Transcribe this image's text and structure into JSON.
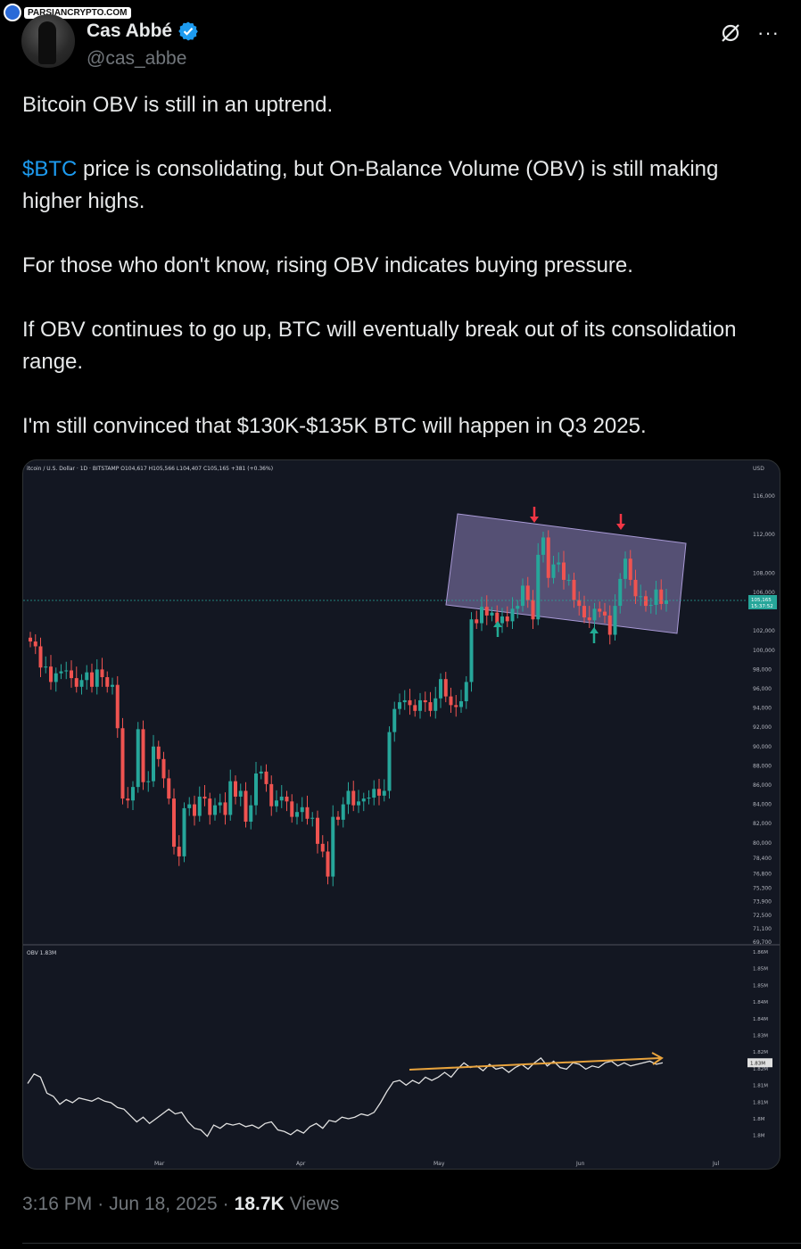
{
  "watermark": {
    "text": "PARSIANCRYPTO.COM"
  },
  "author": {
    "name": "Cas Abbé",
    "handle": "@cas_abbe",
    "verified": true,
    "verified_color": "#1d9bf0"
  },
  "header_icons": {
    "grok": "grok-icon",
    "more": "···"
  },
  "tweet": {
    "line1": "Bitcoin OBV is still in an uptrend.",
    "cashtag": "$BTC",
    "line2_rest": " price is consolidating, but On-Balance Volume (OBV) is still making higher highs.",
    "line3": "For those who don't know, rising OBV indicates buying pressure.",
    "line4": "If OBV continues to go up, BTC will eventually break out of its consolidation range.",
    "line5": "I'm still convinced that $130K-$135K BTC will happen in Q3 2025."
  },
  "meta": {
    "time": "3:16 PM",
    "sep1": "·",
    "date": "Jun 18, 2025",
    "sep2": "·",
    "views_count": "18.7K",
    "views_label": "Views"
  },
  "chart_data": [
    {
      "type": "candlestick",
      "header": "itcoin / U.S. Dollar · 1D · BITSTAMP  O104,617  H105,566  L104,407  C105,165  +381 (+0.36%)",
      "currency": "USD",
      "price_ticks": [
        116000,
        112000,
        108000,
        106000,
        102000,
        100000,
        98000,
        96000,
        94000,
        92000,
        90000,
        88000,
        86000,
        84000,
        82000,
        80000,
        78400,
        76800,
        75300,
        73900,
        72500,
        71100,
        69700
      ],
      "price_tick_labels": [
        "116,000",
        "112,000",
        "108,000",
        "106,000",
        "102,000",
        "100,000",
        "98,000",
        "96,000",
        "94,000",
        "92,000",
        "90,000",
        "88,000",
        "86,000",
        "84,000",
        "82,000",
        "80,000",
        "78,400",
        "76,800",
        "75,300",
        "73,900",
        "72,500",
        "71,100",
        "69,700"
      ],
      "last_price_label": "105,165",
      "countdown_label": "15:37:52",
      "x_labels": [
        "Mar",
        "Apr",
        "May",
        "Jun",
        "Jul"
      ],
      "colors": {
        "up": "#26a69a",
        "down": "#ef5350",
        "box": "#8c7fb8"
      },
      "closes": [
        100900,
        100400,
        98200,
        98300,
        96700,
        97600,
        97800,
        97900,
        97100,
        96200,
        96900,
        97700,
        96200,
        98000,
        97200,
        96200,
        96400,
        91900,
        84600,
        84400,
        85800,
        91800,
        86300,
        86400,
        90000,
        88700,
        86700,
        84600,
        79600,
        78600,
        83600,
        84000,
        82800,
        84800,
        84600,
        82900,
        83900,
        84200,
        82900,
        86400,
        84800,
        85400,
        82200,
        83900,
        87200,
        87400,
        86100,
        83800,
        84400,
        84800,
        84300,
        82700,
        83200,
        83700,
        82500,
        82600,
        79900,
        79100,
        76500,
        82700,
        82400,
        84000,
        85400,
        83900,
        84300,
        84600,
        84700,
        85600,
        84900,
        85400,
        91500,
        93900,
        94600,
        94800,
        94300,
        93700,
        94800,
        94600,
        93700,
        95000,
        97000,
        95200,
        94300,
        94100,
        94700,
        96700,
        103200,
        102800,
        104500,
        103600,
        103900,
        102800,
        103500,
        103000,
        104300,
        104600,
        106700,
        105200,
        103200,
        109900,
        111700,
        107500,
        108900,
        109100,
        107300,
        107300,
        105200,
        104600,
        103400,
        103100,
        104300,
        104000,
        103600,
        101600,
        104600,
        107400,
        109500,
        107300,
        105600,
        105600,
        104600,
        104700,
        106300,
        104800,
        105165
      ],
      "obv": [
        1.8205,
        1.8235,
        1.8225,
        1.8175,
        1.8165,
        1.814,
        1.8155,
        1.8145,
        1.816,
        1.8155,
        1.815,
        1.816,
        1.815,
        1.8145,
        1.813,
        1.8125,
        1.8105,
        1.8085,
        1.81,
        1.808,
        1.8095,
        1.811,
        1.8125,
        1.811,
        1.8115,
        1.8085,
        1.8065,
        1.806,
        1.804,
        1.8075,
        1.8065,
        1.808,
        1.8075,
        1.808,
        1.807,
        1.8075,
        1.8065,
        1.808,
        1.8085,
        1.806,
        1.8055,
        1.8045,
        1.806,
        1.805,
        1.807,
        1.808,
        1.8065,
        1.809,
        1.8085,
        1.81,
        1.8095,
        1.81,
        1.811,
        1.8105,
        1.8115,
        1.8145,
        1.818,
        1.821,
        1.8215,
        1.82,
        1.8215,
        1.8205,
        1.8225,
        1.8215,
        1.8225,
        1.824,
        1.8225,
        1.825,
        1.827,
        1.8255,
        1.826,
        1.8245,
        1.8265,
        1.825,
        1.8255,
        1.824,
        1.8255,
        1.8265,
        1.825,
        1.827,
        1.8285,
        1.826,
        1.8275,
        1.8255,
        1.825,
        1.827,
        1.8265,
        1.825,
        1.826,
        1.8255,
        1.827,
        1.8275,
        1.826,
        1.827,
        1.826,
        1.8265,
        1.827,
        1.8275,
        1.8265,
        1.827
      ],
      "obv_label": "OBV 1.83M",
      "obv_ticks": [
        "1.86M",
        "1.85M",
        "1.85M",
        "1.84M",
        "1.84M",
        "1.83M",
        "1.82M",
        "1.82M",
        "1.81M",
        "1.81M",
        "1.8M",
        "1.8M"
      ],
      "obv_current_label": "1.83M"
    }
  ]
}
